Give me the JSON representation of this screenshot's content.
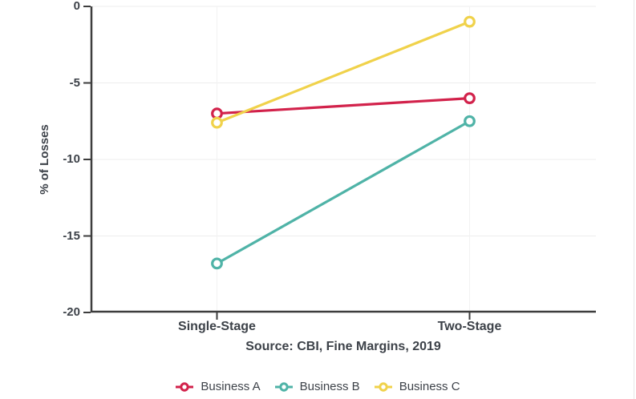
{
  "figure": {
    "ylabel": "% of Losses",
    "source_caption": "Source: CBI, Fine Margins, 2019"
  },
  "colors": {
    "background": "#ffffff",
    "text": "#3d4249",
    "axis": "#3d3d3d",
    "h_gridline": "#ededed",
    "v_gridline": "#f2f2f2"
  },
  "chart_data": {
    "type": "line",
    "categories": [
      "Single-Stage",
      "Two-Stage"
    ],
    "series": [
      {
        "name": "Business A",
        "values": [
          -7,
          -6
        ],
        "color": "#d2224b"
      },
      {
        "name": "Business B",
        "values": [
          -16.8,
          -7.5
        ],
        "color": "#4fb3a7"
      },
      {
        "name": "Business C",
        "values": [
          -7.6,
          -1
        ],
        "color": "#f0d24b"
      }
    ],
    "title": "",
    "xlabel": "",
    "ylabel": "% of Losses",
    "ylim": [
      -20,
      0
    ],
    "yticks": [
      0,
      -5,
      -10,
      -15,
      -20
    ],
    "grid": true,
    "legend_position": "bottom",
    "marker": "open-circle",
    "source": "Source: CBI, Fine Margins, 2019"
  }
}
